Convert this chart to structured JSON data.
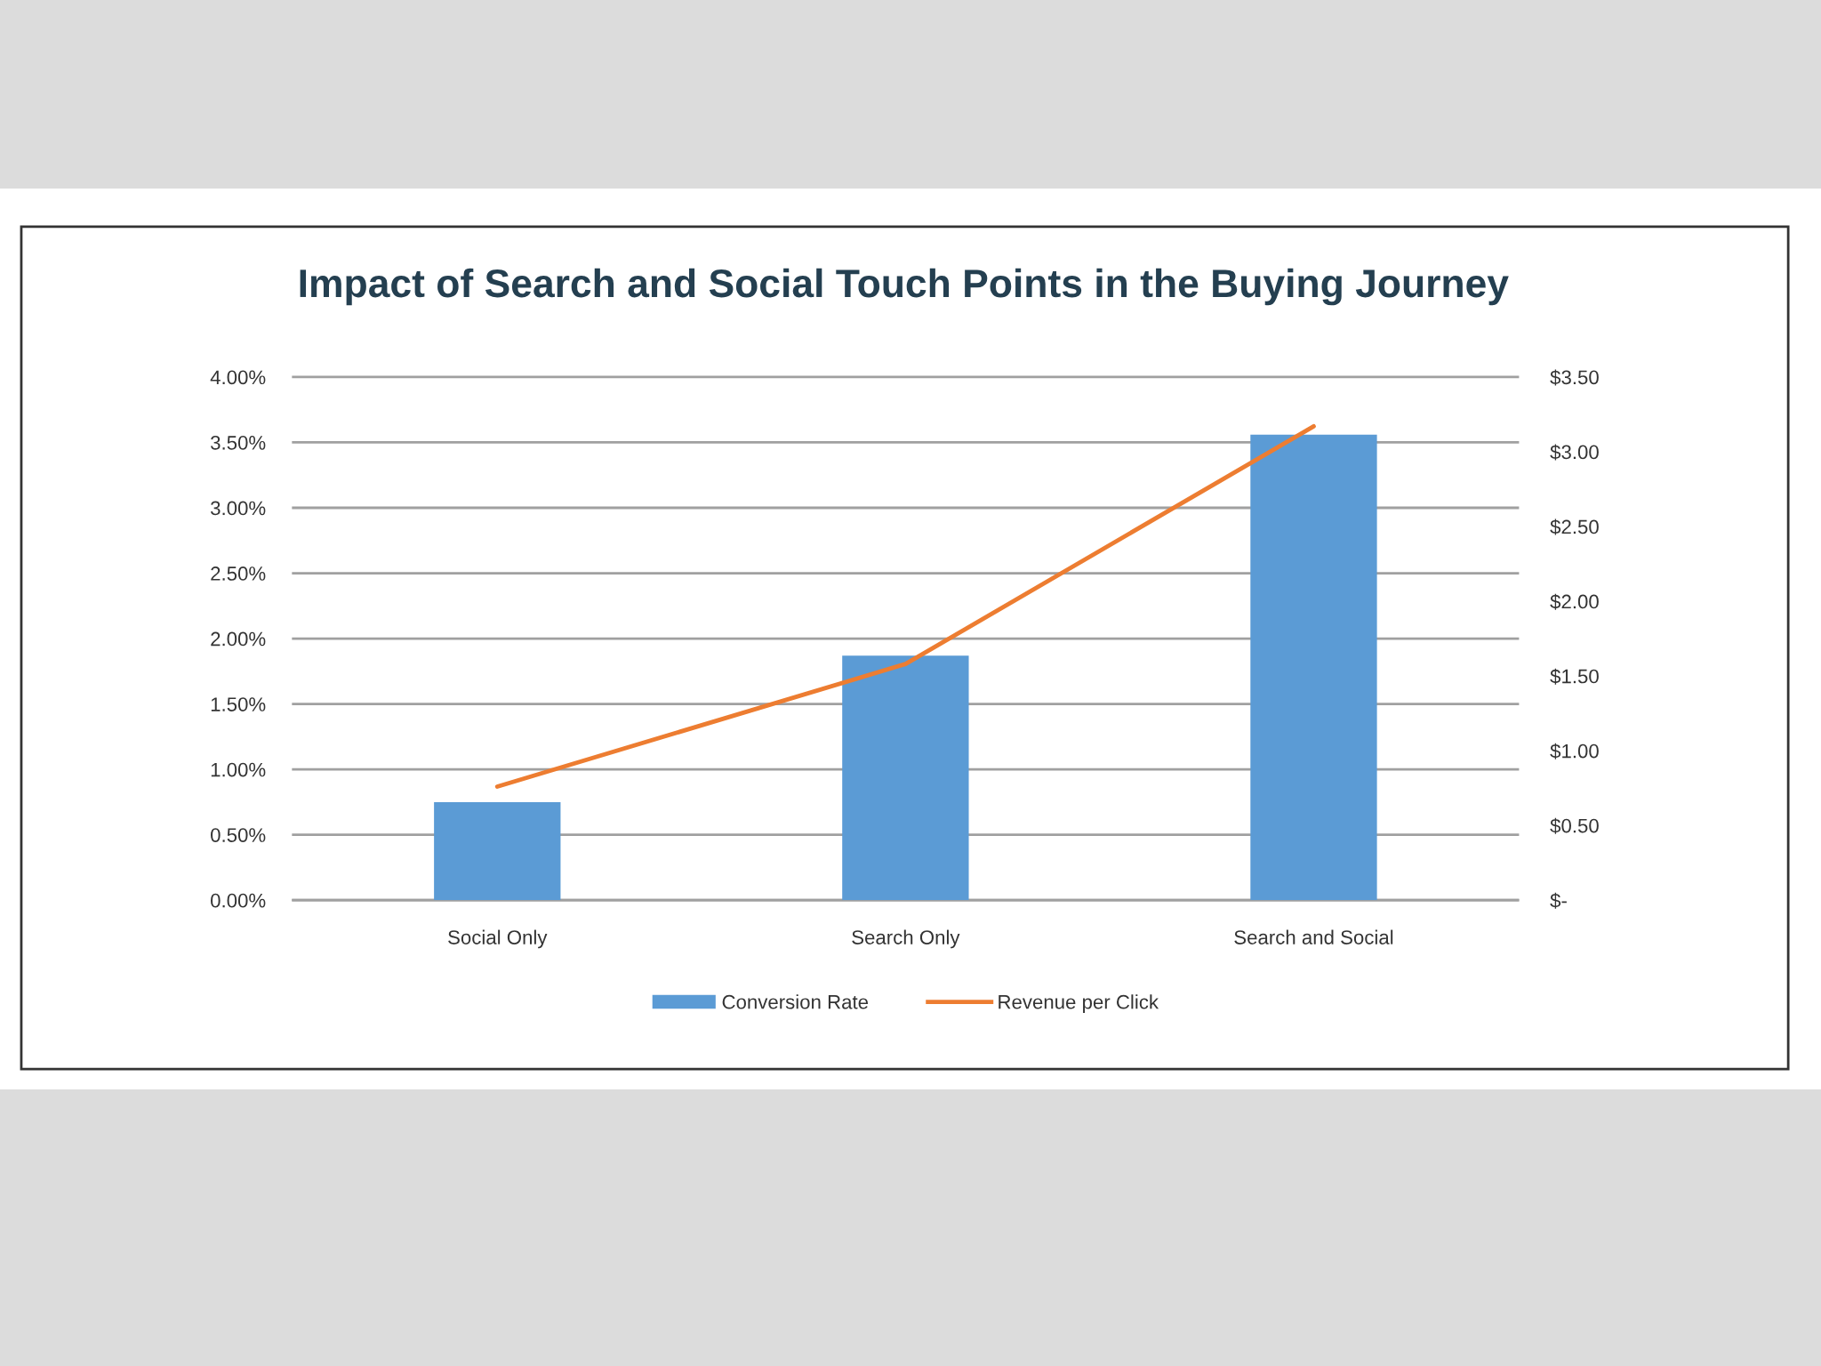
{
  "chart_data": {
    "type": "bar",
    "title": "Impact of Search and Social Touch Points in the Buying Journey",
    "categories": [
      "Social Only",
      "Search Only",
      "Search and Social"
    ],
    "series": [
      {
        "name": "Conversion Rate",
        "color": "#5b9bd5",
        "values": [
          0.75,
          1.87,
          3.56
        ]
      },
      {
        "name": "Revenue per Click",
        "type": "line",
        "axis": "y2",
        "color": "#ed7d31",
        "values": [
          0.76,
          1.58,
          3.17
        ]
      }
    ],
    "ylim": [
      0,
      4
    ],
    "yticks": [
      {
        "value": 0,
        "label": "0.00%"
      },
      {
        "value": 0.5,
        "label": "0.50%"
      },
      {
        "value": 1,
        "label": "1.00%"
      },
      {
        "value": 1.5,
        "label": "1.50%"
      },
      {
        "value": 2,
        "label": "2.00%"
      },
      {
        "value": 2.5,
        "label": "2.50%"
      },
      {
        "value": 3,
        "label": "3.00%"
      },
      {
        "value": 3.5,
        "label": "3.50%"
      },
      {
        "value": 4,
        "label": "4.00%"
      }
    ],
    "y2lim": [
      0,
      3.5
    ],
    "y2ticks": [
      {
        "value": 0,
        "label": "$-"
      },
      {
        "value": 0.5,
        "label": "$0.50"
      },
      {
        "value": 1,
        "label": "$1.00"
      },
      {
        "value": 1.5,
        "label": "$1.50"
      },
      {
        "value": 2,
        "label": "$2.00"
      },
      {
        "value": 2.5,
        "label": "$2.50"
      },
      {
        "value": 3,
        "label": "$3.00"
      },
      {
        "value": 3.5,
        "label": "$3.50"
      }
    ],
    "grid": "y",
    "legend": "bottom",
    "line_style": "solid"
  }
}
